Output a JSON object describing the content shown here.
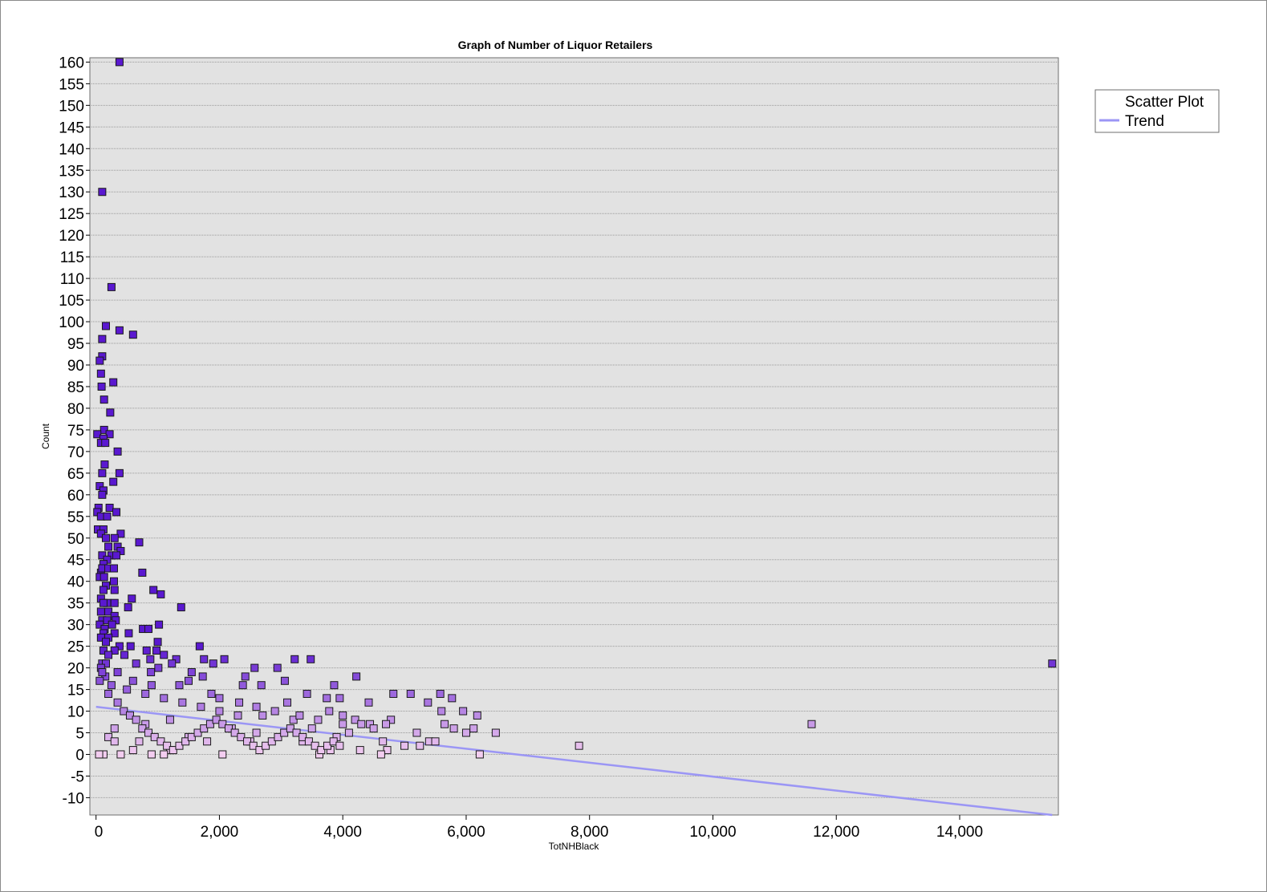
{
  "chart_data": {
    "type": "scatter",
    "title": "Graph of Number of Liquor Retailers",
    "xlabel": "TotNHBlack",
    "ylabel": "Count",
    "xlim": [
      -100,
      15600
    ],
    "ylim": [
      -14,
      161
    ],
    "x_ticks": [
      0,
      2000,
      4000,
      6000,
      8000,
      10000,
      12000,
      14000
    ],
    "x_tick_labels": [
      "0",
      "2,000",
      "4,000",
      "6,000",
      "8,000",
      "10,000",
      "12,000",
      "14,000"
    ],
    "y_ticks": [
      -10,
      -5,
      0,
      5,
      10,
      15,
      20,
      25,
      30,
      35,
      40,
      45,
      50,
      55,
      60,
      65,
      70,
      75,
      80,
      85,
      90,
      95,
      100,
      105,
      110,
      115,
      120,
      125,
      130,
      135,
      140,
      145,
      150,
      155,
      160
    ],
    "y_tick_labels": [
      "-10",
      "-5",
      "0",
      "5",
      "10",
      "15",
      "20",
      "25",
      "30",
      "35",
      "40",
      "45",
      "50",
      "55",
      "60",
      "65",
      "70",
      "75",
      "80",
      "85",
      "90",
      "95",
      "100",
      "105",
      "110",
      "115",
      "120",
      "125",
      "130",
      "135",
      "140",
      "145",
      "150",
      "155",
      "160"
    ],
    "grid": true,
    "legend_position": "right",
    "series": [
      {
        "name": "Scatter Plot",
        "color": "#6a2bd8",
        "marker": "square",
        "color_by_value": {
          "low": "#f3cdf0",
          "high": "#5a18d0",
          "range": [
            0,
            25
          ]
        },
        "points": [
          [
            380,
            160
          ],
          [
            100,
            130
          ],
          [
            250,
            108
          ],
          [
            160,
            99
          ],
          [
            380,
            98
          ],
          [
            600,
            97
          ],
          [
            100,
            96
          ],
          [
            100,
            92
          ],
          [
            60,
            91
          ],
          [
            80,
            88
          ],
          [
            280,
            86
          ],
          [
            90,
            85
          ],
          [
            130,
            82
          ],
          [
            230,
            79
          ],
          [
            130,
            75
          ],
          [
            20,
            74
          ],
          [
            220,
            74
          ],
          [
            120,
            73
          ],
          [
            80,
            72
          ],
          [
            150,
            72
          ],
          [
            350,
            70
          ],
          [
            140,
            67
          ],
          [
            100,
            65
          ],
          [
            380,
            65
          ],
          [
            280,
            63
          ],
          [
            60,
            62
          ],
          [
            120,
            61
          ],
          [
            100,
            60
          ],
          [
            40,
            57
          ],
          [
            220,
            57
          ],
          [
            20,
            56
          ],
          [
            330,
            56
          ],
          [
            80,
            55
          ],
          [
            180,
            55
          ],
          [
            30,
            52
          ],
          [
            120,
            52
          ],
          [
            400,
            51
          ],
          [
            80,
            51
          ],
          [
            300,
            50
          ],
          [
            160,
            50
          ],
          [
            700,
            49
          ],
          [
            200,
            48
          ],
          [
            350,
            48
          ],
          [
            400,
            47
          ],
          [
            100,
            46
          ],
          [
            250,
            46
          ],
          [
            330,
            46
          ],
          [
            180,
            45
          ],
          [
            120,
            44
          ],
          [
            80,
            42
          ],
          [
            750,
            42
          ],
          [
            100,
            43
          ],
          [
            200,
            43
          ],
          [
            290,
            43
          ],
          [
            60,
            41
          ],
          [
            130,
            41
          ],
          [
            290,
            40
          ],
          [
            160,
            39
          ],
          [
            930,
            38
          ],
          [
            120,
            38
          ],
          [
            300,
            38
          ],
          [
            1050,
            37
          ],
          [
            80,
            36
          ],
          [
            580,
            36
          ],
          [
            180,
            35
          ],
          [
            300,
            35
          ],
          [
            120,
            35
          ],
          [
            520,
            34
          ],
          [
            1380,
            34
          ],
          [
            80,
            33
          ],
          [
            200,
            33
          ],
          [
            300,
            32
          ],
          [
            100,
            31
          ],
          [
            180,
            31
          ],
          [
            320,
            31
          ],
          [
            1020,
            30
          ],
          [
            60,
            30
          ],
          [
            260,
            30
          ],
          [
            760,
            29
          ],
          [
            850,
            29
          ],
          [
            140,
            29
          ],
          [
            120,
            28
          ],
          [
            530,
            28
          ],
          [
            300,
            28
          ],
          [
            80,
            27
          ],
          [
            200,
            27
          ],
          [
            160,
            26
          ],
          [
            1000,
            26
          ],
          [
            380,
            25
          ],
          [
            560,
            25
          ],
          [
            1680,
            25
          ],
          [
            820,
            24
          ],
          [
            980,
            24
          ],
          [
            120,
            24
          ],
          [
            300,
            24
          ],
          [
            1100,
            23
          ],
          [
            460,
            23
          ],
          [
            200,
            23
          ],
          [
            1750,
            22
          ],
          [
            2080,
            22
          ],
          [
            3220,
            22
          ],
          [
            3480,
            22
          ],
          [
            1300,
            22
          ],
          [
            880,
            22
          ],
          [
            100,
            21
          ],
          [
            1900,
            21
          ],
          [
            15500,
            21
          ],
          [
            650,
            21
          ],
          [
            1230,
            21
          ],
          [
            160,
            21
          ],
          [
            2570,
            20
          ],
          [
            2940,
            20
          ],
          [
            80,
            20
          ],
          [
            1010,
            20
          ],
          [
            1550,
            19
          ],
          [
            890,
            19
          ],
          [
            350,
            19
          ],
          [
            4220,
            18
          ],
          [
            2420,
            18
          ],
          [
            1730,
            18
          ],
          [
            3060,
            17
          ],
          [
            1500,
            17
          ],
          [
            600,
            17
          ],
          [
            3860,
            16
          ],
          [
            1350,
            16
          ],
          [
            2380,
            16
          ],
          [
            2680,
            16
          ],
          [
            900,
            16
          ],
          [
            4820,
            14
          ],
          [
            5100,
            14
          ],
          [
            5580,
            14
          ],
          [
            1870,
            14
          ],
          [
            3420,
            14
          ],
          [
            2000,
            13
          ],
          [
            3740,
            13
          ],
          [
            3950,
            13
          ],
          [
            5770,
            13
          ],
          [
            4420,
            12
          ],
          [
            5380,
            12
          ],
          [
            2320,
            12
          ],
          [
            3100,
            12
          ],
          [
            5600,
            10
          ],
          [
            3780,
            10
          ],
          [
            5950,
            10
          ],
          [
            6180,
            9
          ],
          [
            2700,
            9
          ],
          [
            4000,
            9
          ],
          [
            4780,
            8
          ],
          [
            3200,
            8
          ],
          [
            4200,
            8
          ],
          [
            1200,
            8
          ],
          [
            11600,
            7
          ],
          [
            4440,
            7
          ],
          [
            5650,
            7
          ],
          [
            4700,
            7
          ],
          [
            800,
            7
          ],
          [
            4500,
            6
          ],
          [
            5800,
            6
          ],
          [
            6120,
            6
          ],
          [
            3500,
            6
          ],
          [
            2200,
            6
          ],
          [
            300,
            6
          ],
          [
            5200,
            5
          ],
          [
            6480,
            5
          ],
          [
            6000,
            5
          ],
          [
            4100,
            5
          ],
          [
            2600,
            5
          ],
          [
            3900,
            4
          ],
          [
            1500,
            4
          ],
          [
            200,
            4
          ],
          [
            5250,
            2
          ],
          [
            5000,
            2
          ],
          [
            7830,
            2
          ],
          [
            4280,
            1
          ],
          [
            4720,
            1
          ],
          [
            3800,
            1
          ],
          [
            1200,
            1
          ],
          [
            600,
            1
          ],
          [
            6220,
            0
          ],
          [
            4620,
            0
          ],
          [
            3620,
            0
          ],
          [
            2050,
            0
          ],
          [
            1100,
            0
          ],
          [
            900,
            0
          ],
          [
            400,
            0
          ],
          [
            120,
            0
          ],
          [
            50,
            0
          ],
          [
            5400,
            3
          ],
          [
            5500,
            3
          ],
          [
            4650,
            3
          ],
          [
            3350,
            3
          ],
          [
            2500,
            3
          ],
          [
            1800,
            3
          ],
          [
            300,
            3
          ],
          [
            700,
            3
          ],
          [
            4300,
            7
          ],
          [
            4000,
            7
          ],
          [
            3600,
            8
          ],
          [
            3300,
            9
          ],
          [
            2900,
            10
          ],
          [
            2600,
            11
          ],
          [
            2300,
            9
          ],
          [
            2000,
            10
          ],
          [
            1700,
            11
          ],
          [
            1400,
            12
          ],
          [
            1100,
            13
          ],
          [
            800,
            14
          ],
          [
            500,
            15
          ],
          [
            250,
            16
          ],
          [
            150,
            18
          ],
          [
            100,
            19
          ],
          [
            60,
            17
          ],
          [
            200,
            14
          ],
          [
            350,
            12
          ],
          [
            450,
            10
          ],
          [
            550,
            9
          ],
          [
            650,
            8
          ],
          [
            750,
            6
          ],
          [
            850,
            5
          ],
          [
            950,
            4
          ],
          [
            1050,
            3
          ],
          [
            1150,
            2
          ],
          [
            1250,
            1
          ],
          [
            1350,
            2
          ],
          [
            1450,
            3
          ],
          [
            1550,
            4
          ],
          [
            1650,
            5
          ],
          [
            1750,
            6
          ],
          [
            1850,
            7
          ],
          [
            1950,
            8
          ],
          [
            2050,
            7
          ],
          [
            2150,
            6
          ],
          [
            2250,
            5
          ],
          [
            2350,
            4
          ],
          [
            2450,
            3
          ],
          [
            2550,
            2
          ],
          [
            2650,
            1
          ],
          [
            2750,
            2
          ],
          [
            2850,
            3
          ],
          [
            2950,
            4
          ],
          [
            3050,
            5
          ],
          [
            3150,
            6
          ],
          [
            3250,
            5
          ],
          [
            3350,
            4
          ],
          [
            3450,
            3
          ],
          [
            3550,
            2
          ],
          [
            3650,
            1
          ],
          [
            3750,
            2
          ],
          [
            3850,
            3
          ],
          [
            3950,
            2
          ]
        ]
      },
      {
        "name": "Trend",
        "color": "#9b96f5",
        "type": "line",
        "x": [
          0,
          15500
        ],
        "y": [
          11,
          -14
        ]
      }
    ]
  }
}
